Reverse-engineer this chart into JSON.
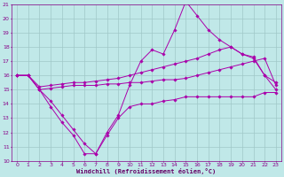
{
  "xlabel": "Windchill (Refroidissement éolien,°C)",
  "bg_color": "#c0e8e8",
  "grid_color": "#a0c8c8",
  "line_color": "#aa00aa",
  "xlim": [
    -0.5,
    23.5
  ],
  "ylim": [
    10,
    21
  ],
  "xticks": [
    0,
    1,
    2,
    3,
    4,
    5,
    6,
    7,
    8,
    9,
    10,
    11,
    12,
    13,
    14,
    15,
    16,
    17,
    18,
    19,
    20,
    21,
    22,
    23
  ],
  "yticks": [
    10,
    11,
    12,
    13,
    14,
    15,
    16,
    17,
    18,
    19,
    20,
    21
  ],
  "series": [
    {
      "x": [
        0,
        1,
        2,
        3,
        4,
        5,
        6,
        7,
        8,
        9,
        10,
        11,
        12,
        13,
        14,
        15,
        16,
        17,
        18,
        19,
        20,
        21,
        22,
        23
      ],
      "y": [
        16.0,
        16.0,
        15.0,
        13.8,
        12.7,
        11.8,
        10.5,
        10.5,
        11.8,
        13.0,
        13.8,
        14.0,
        14.0,
        14.2,
        14.3,
        14.5,
        14.5,
        14.5,
        14.5,
        14.5,
        14.5,
        14.5,
        14.8,
        14.8
      ]
    },
    {
      "x": [
        0,
        1,
        2,
        3,
        4,
        5,
        6,
        7,
        8,
        9,
        10,
        11,
        12,
        13,
        14,
        15,
        16,
        17,
        18,
        19,
        20,
        21,
        22,
        23
      ],
      "y": [
        16.0,
        16.0,
        15.0,
        15.1,
        15.2,
        15.3,
        15.3,
        15.3,
        15.4,
        15.4,
        15.5,
        15.5,
        15.6,
        15.7,
        15.7,
        15.8,
        16.0,
        16.2,
        16.4,
        16.6,
        16.8,
        17.0,
        17.2,
        15.3
      ]
    },
    {
      "x": [
        0,
        1,
        2,
        3,
        4,
        5,
        6,
        7,
        8,
        9,
        10,
        11,
        12,
        13,
        14,
        15,
        16,
        17,
        18,
        19,
        20,
        21,
        22,
        23
      ],
      "y": [
        16.0,
        16.0,
        15.2,
        15.3,
        15.4,
        15.5,
        15.5,
        15.6,
        15.7,
        15.8,
        16.0,
        16.2,
        16.4,
        16.6,
        16.8,
        17.0,
        17.2,
        17.5,
        17.8,
        18.0,
        17.5,
        17.2,
        16.0,
        15.5
      ]
    },
    {
      "x": [
        0,
        1,
        2,
        3,
        4,
        5,
        6,
        7,
        8,
        9,
        10,
        11,
        12,
        13,
        14,
        15,
        16,
        17,
        18,
        19,
        20,
        21,
        22,
        23
      ],
      "y": [
        16.0,
        16.0,
        15.0,
        14.2,
        13.2,
        12.2,
        11.2,
        10.5,
        12.0,
        13.2,
        15.3,
        17.0,
        17.8,
        17.5,
        19.2,
        21.2,
        20.2,
        19.2,
        18.5,
        18.0,
        17.5,
        17.3,
        16.0,
        15.0
      ]
    }
  ]
}
